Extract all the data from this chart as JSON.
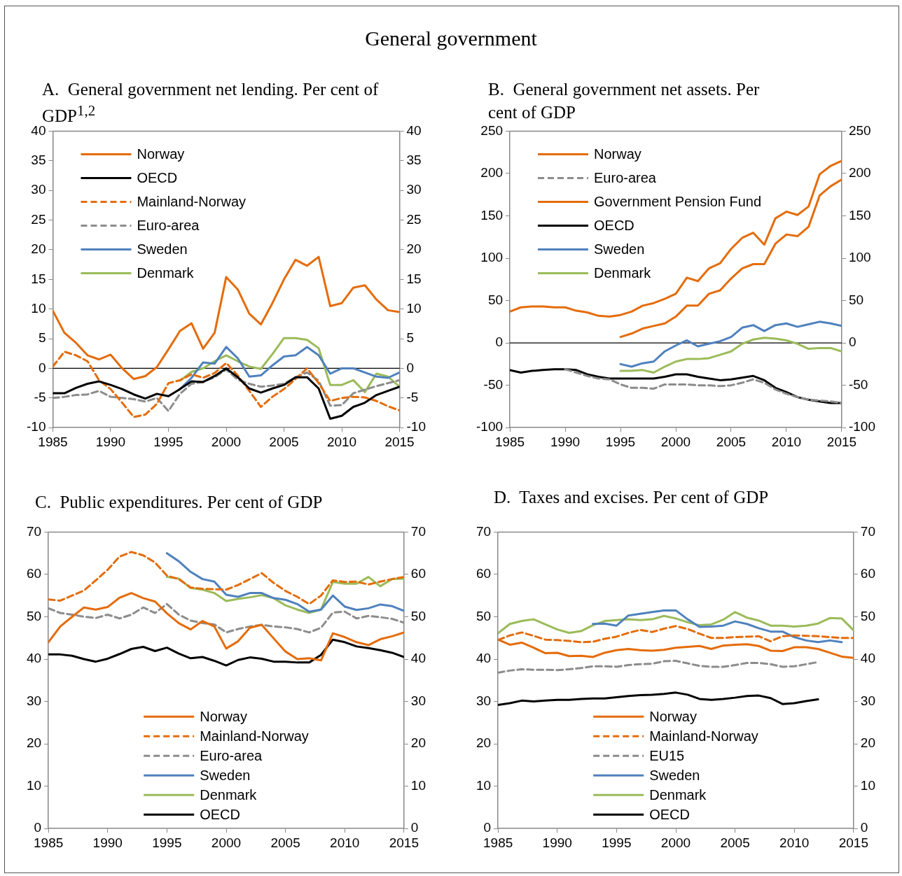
{
  "chart_data": [
    {
      "type": "other",
      "title": "General government"
    },
    {
      "type": "line",
      "title": "A.  General government net lending. Per cent of GDP$^{1,2}$",
      "x": [
        1985,
        1986,
        1987,
        1988,
        1989,
        1990,
        1991,
        1992,
        1993,
        1994,
        1995,
        1996,
        1997,
        1998,
        1999,
        2000,
        2001,
        2002,
        2003,
        2004,
        2005,
        2006,
        2007,
        2008,
        2009,
        2010,
        2011,
        2012,
        2013,
        2014,
        2015
      ],
      "xlim": [
        1985,
        2015
      ],
      "xticks": [
        1985,
        1990,
        1995,
        2000,
        2005,
        2010,
        2015
      ],
      "ylim": [
        -10,
        40
      ],
      "yticks": [
        -10,
        -5,
        0,
        5,
        10,
        15,
        20,
        25,
        30,
        35,
        40
      ],
      "y2lim": [
        -10,
        40
      ],
      "y2ticks": [
        -10,
        -5,
        0,
        5,
        10,
        15,
        20,
        25,
        30,
        35,
        40
      ],
      "legend": "top left",
      "ref_lines": [
        {
          "axis": "y",
          "value": 0,
          "color": "#000000"
        }
      ],
      "series": [
        {
          "name": "Norway",
          "color": "#e46c0a",
          "line_style": "solid",
          "values": [
            9.7,
            6,
            4.3,
            2.2,
            1.5,
            2.3,
            0,
            -1.8,
            -1.3,
            0.2,
            3.2,
            6.3,
            7.6,
            3.3,
            6,
            15.4,
            13.3,
            9.2,
            7.4,
            11,
            15,
            18.3,
            17.3,
            18.8,
            10.5,
            11,
            13.6,
            14,
            11.6,
            9.8,
            9.5
          ]
        },
        {
          "name": "OECD",
          "color": "#000000",
          "line_style": "solid",
          "values": [
            -4.2,
            -4.2,
            -3.3,
            -2.6,
            -2.2,
            -2.8,
            -3.5,
            -4.4,
            -5.1,
            -4.3,
            -4.7,
            -3.5,
            -2.2,
            -2.3,
            -1.3,
            0,
            -1.5,
            -3.4,
            -4.1,
            -3.4,
            -2.8,
            -1.5,
            -1.5,
            -3.4,
            -8.5,
            -8,
            -6.5,
            -5.8,
            -4.5,
            -3.8,
            -3.1
          ]
        },
        {
          "name": "Mainland-Norway",
          "color": "#e46c0a",
          "line_style": "dashed",
          "values": [
            0.3,
            2.8,
            2.2,
            1.2,
            -2,
            -3.5,
            -5.8,
            -8.2,
            -7.8,
            -6,
            -2.5,
            -2,
            -1,
            -1.6,
            -0.8,
            0.9,
            -1.2,
            -3.8,
            -6.5,
            -4.8,
            -3.5,
            -1.8,
            0,
            -2.5,
            -5.5,
            -5,
            -4.8,
            -4.9,
            -5.5,
            -6.4,
            -7.1
          ]
        },
        {
          "name": "Euro-area",
          "color": "#8c8c8c",
          "line_style": "dashed",
          "values": [
            -5,
            -4.8,
            -4.5,
            -4.4,
            -3.8,
            -4.8,
            -5,
            -5.2,
            -5.6,
            -5,
            -7.2,
            -4.3,
            -2.6,
            -2.3,
            -1.5,
            -0.2,
            -1.9,
            -2.6,
            -3.1,
            -2.9,
            -2.6,
            -1.5,
            -0.7,
            -2.1,
            -6.3,
            -6.2,
            -4.2,
            -3.6,
            -3,
            -2.5,
            -2
          ]
        },
        {
          "name": "Sweden",
          "color": "#4f81bd",
          "line_style": "solid",
          "values": [
            null,
            null,
            null,
            null,
            null,
            null,
            null,
            null,
            null,
            null,
            null,
            -3.5,
            -1.6,
            1,
            0.8,
            3.6,
            1.7,
            -1.4,
            -1.2,
            0.5,
            2,
            2.2,
            3.6,
            2.2,
            -0.9,
            0,
            0,
            -0.7,
            -1.4,
            -1.6,
            -0.7
          ]
        },
        {
          "name": "Denmark",
          "color": "#9bbb59",
          "line_style": "solid",
          "values": [
            null,
            null,
            null,
            null,
            null,
            null,
            null,
            null,
            null,
            null,
            null,
            -2.1,
            -0.6,
            0,
            1.2,
            2.2,
            1.2,
            0.3,
            -0.1,
            2.4,
            5.1,
            5.1,
            4.8,
            3.4,
            -2.8,
            -2.8,
            -2,
            -4,
            -0.9,
            -1.4,
            -3.1
          ]
        }
      ]
    },
    {
      "type": "line",
      "title": "B.  General government net assets. Per cent of GDP",
      "x": [
        1985,
        1986,
        1987,
        1988,
        1989,
        1990,
        1991,
        1992,
        1993,
        1994,
        1995,
        1996,
        1997,
        1998,
        1999,
        2000,
        2001,
        2002,
        2003,
        2004,
        2005,
        2006,
        2007,
        2008,
        2009,
        2010,
        2011,
        2012,
        2013,
        2014,
        2015
      ],
      "xlim": [
        1985,
        2015
      ],
      "xticks": [
        1985,
        1990,
        1995,
        2000,
        2005,
        2010,
        2015
      ],
      "ylim": [
        -100,
        250
      ],
      "yticks": [
        -100,
        -50,
        0,
        50,
        100,
        150,
        200,
        250
      ],
      "y2lim": [
        -100,
        250
      ],
      "y2ticks": [
        -100,
        -50,
        0,
        50,
        100,
        150,
        200,
        250
      ],
      "legend": "top left",
      "ref_lines": [
        {
          "axis": "y",
          "value": 0,
          "color": "#000000"
        }
      ],
      "series": [
        {
          "name": "Norway",
          "color": "#e46c0a",
          "line_style": "solid",
          "values": [
            37,
            42,
            43,
            43,
            42,
            42,
            38,
            36,
            32,
            31,
            33,
            37,
            44,
            47,
            52,
            58,
            77,
            73,
            88,
            94,
            111,
            124,
            130,
            116,
            147,
            155,
            151,
            161,
            199,
            209,
            215
          ]
        },
        {
          "name": "Euro-area",
          "color": "#8c8c8c",
          "line_style": "dashed",
          "values": [
            null,
            null,
            null,
            null,
            null,
            -31,
            -35,
            -39,
            -42,
            -43,
            -49,
            -53,
            -53,
            -54,
            -49,
            -49,
            -49,
            -50,
            -50,
            -51,
            -50,
            -47,
            -43,
            -47,
            -55,
            -60,
            -64,
            -67,
            -68,
            -69,
            -71
          ]
        },
        {
          "name": "Government Pension Fund",
          "color": "#e46c0a",
          "line_style": "solid",
          "values": [
            null,
            null,
            null,
            null,
            null,
            null,
            null,
            null,
            null,
            null,
            7,
            11,
            17,
            20,
            23,
            31,
            44,
            44,
            58,
            62,
            76,
            88,
            93,
            93,
            117,
            128,
            126,
            137,
            174,
            185,
            193
          ]
        },
        {
          "name": "OECD",
          "color": "#000000",
          "line_style": "solid",
          "values": [
            -32,
            -35,
            -33,
            -32,
            -31,
            -31,
            -32,
            -37,
            -40,
            -42,
            -42,
            -42,
            -42,
            -42,
            -40,
            -37,
            -37,
            -40,
            -42,
            -44,
            -43,
            -41,
            -39,
            -44,
            -53,
            -58,
            -64,
            -67,
            -69,
            -71,
            -71
          ]
        },
        {
          "name": "Sweden",
          "color": "#4f81bd",
          "line_style": "solid",
          "values": [
            null,
            null,
            null,
            null,
            null,
            null,
            null,
            null,
            null,
            null,
            -25,
            -28,
            -24,
            -22,
            -10,
            -3,
            3,
            -4,
            -1,
            2,
            7,
            18,
            21,
            14,
            21,
            23,
            19,
            22,
            25,
            23,
            20
          ]
        },
        {
          "name": "Denmark",
          "color": "#9bbb59",
          "line_style": "solid",
          "values": [
            null,
            null,
            null,
            null,
            null,
            null,
            null,
            null,
            null,
            null,
            -33,
            -33,
            -32,
            -35,
            -28,
            -22,
            -19,
            -19,
            -18,
            -14,
            -10,
            -1,
            4,
            6,
            5,
            3,
            -1,
            -7,
            -6,
            -6,
            -10
          ]
        }
      ]
    },
    {
      "type": "line",
      "title": "C.  Public expenditures. Per cent of GDP",
      "x": [
        1985,
        1986,
        1987,
        1988,
        1989,
        1990,
        1991,
        1992,
        1993,
        1994,
        1995,
        1996,
        1997,
        1998,
        1999,
        2000,
        2001,
        2002,
        2003,
        2004,
        2005,
        2006,
        2007,
        2008,
        2009,
        2010,
        2011,
        2012,
        2013,
        2014,
        2015
      ],
      "xlim": [
        1985,
        2015
      ],
      "xticks": [
        1985,
        1990,
        1995,
        2000,
        2005,
        2010,
        2015
      ],
      "ylim": [
        0,
        70
      ],
      "yticks": [
        0,
        10,
        20,
        30,
        40,
        50,
        60,
        70
      ],
      "y2lim": [
        0,
        70
      ],
      "y2ticks": [
        0,
        10,
        20,
        30,
        40,
        50,
        60,
        70
      ],
      "legend": "bottom",
      "series": [
        {
          "name": "Norway",
          "color": "#e46c0a",
          "line_style": "solid",
          "values": [
            44,
            47.7,
            50,
            52.2,
            51.7,
            52.3,
            54.5,
            55.6,
            54.4,
            53.6,
            50.8,
            48.5,
            47,
            49,
            47.7,
            42.5,
            44.2,
            47.4,
            48.1,
            44.9,
            41.8,
            40,
            40.2,
            39.7,
            46.1,
            45.2,
            44,
            43.3,
            44.7,
            45.4,
            46.3
          ]
        },
        {
          "name": "Mainland-Norway",
          "color": "#e46c0a",
          "line_style": "dashed",
          "values": [
            54.1,
            53.8,
            55,
            56.2,
            58.6,
            61.1,
            64.2,
            65.3,
            64.5,
            62.8,
            59.7,
            58.9,
            56.9,
            56.6,
            56.5,
            56.4,
            57.5,
            58.9,
            60.3,
            58,
            56.1,
            54.7,
            53,
            55,
            58.6,
            58.2,
            58.3,
            57.6,
            58.3,
            58.9,
            59.4
          ]
        },
        {
          "name": "Euro-area",
          "color": "#8c8c8c",
          "line_style": "dashed",
          "values": [
            52,
            50.9,
            50.5,
            50,
            49.7,
            50.5,
            49.6,
            50.5,
            52.2,
            50.9,
            53,
            50.5,
            49.1,
            48.5,
            48.2,
            46.3,
            47.1,
            47.7,
            48.1,
            47.7,
            47.5,
            47.1,
            46.3,
            47.4,
            51,
            51.2,
            49.6,
            50.2,
            49.9,
            49.5,
            48.6
          ]
        },
        {
          "name": "Sweden",
          "color": "#4f81bd",
          "line_style": "solid",
          "values": [
            null,
            null,
            null,
            null,
            null,
            null,
            null,
            null,
            null,
            null,
            65,
            63.1,
            60.6,
            58.9,
            58.3,
            55.2,
            54.7,
            55.6,
            55.6,
            54.4,
            54,
            53,
            51.2,
            51.7,
            55,
            52.4,
            51.6,
            52,
            52.9,
            52.5,
            51.4
          ]
        },
        {
          "name": "Denmark",
          "color": "#9bbb59",
          "line_style": "solid",
          "values": [
            null,
            null,
            null,
            null,
            null,
            null,
            null,
            null,
            null,
            null,
            59.4,
            59,
            56.8,
            56.4,
            55.6,
            53.7,
            54.2,
            54.6,
            55.1,
            54.4,
            52.7,
            51.7,
            50.9,
            51.7,
            58.2,
            57.8,
            57.8,
            59.4,
            57.2,
            58.9,
            59
          ]
        },
        {
          "name": "OECD",
          "color": "#000000",
          "line_style": "solid",
          "values": [
            41.1,
            41.1,
            40.8,
            40,
            39.4,
            40.1,
            41.2,
            42.4,
            42.9,
            41.9,
            42.7,
            41.3,
            40.2,
            40.5,
            39.6,
            38.5,
            39.8,
            40.4,
            40.1,
            39.4,
            39.4,
            39.2,
            39.2,
            41,
            44.6,
            44,
            43,
            42.6,
            42.1,
            41.5,
            40.5
          ]
        }
      ]
    },
    {
      "type": "line",
      "title": "D.  Taxes and excises. Per cent of GDP",
      "x": [
        1985,
        1986,
        1987,
        1988,
        1989,
        1990,
        1991,
        1992,
        1993,
        1994,
        1995,
        1996,
        1997,
        1998,
        1999,
        2000,
        2001,
        2002,
        2003,
        2004,
        2005,
        2006,
        2007,
        2008,
        2009,
        2010,
        2011,
        2012,
        2013,
        2014,
        2015
      ],
      "xlim": [
        1985,
        2015
      ],
      "xticks": [
        1985,
        1990,
        1995,
        2000,
        2005,
        2010,
        2015
      ],
      "ylim": [
        0,
        70
      ],
      "yticks": [
        0,
        10,
        20,
        30,
        40,
        50,
        60,
        70
      ],
      "y2lim": [
        0,
        70
      ],
      "y2ticks": [
        0,
        10,
        20,
        30,
        40,
        50,
        60,
        70
      ],
      "legend": "bottom",
      "series": [
        {
          "name": "Norway",
          "color": "#e46c0a",
          "line_style": "solid",
          "values": [
            44.6,
            43.4,
            43.9,
            42.7,
            41.4,
            41.5,
            40.7,
            40.8,
            40.5,
            41.5,
            42.1,
            42.4,
            42.1,
            42,
            42.2,
            42.7,
            42.9,
            43.1,
            42.4,
            43.2,
            43.4,
            43.5,
            43.1,
            42,
            41.9,
            42.8,
            42.8,
            42.4,
            41.5,
            40.6,
            40.3
          ]
        },
        {
          "name": "Mainland-Norway",
          "color": "#e46c0a",
          "line_style": "dashed",
          "values": [
            44.5,
            45.6,
            46.3,
            45.5,
            44.6,
            44.5,
            44.3,
            44,
            44.1,
            44.8,
            45.3,
            46.2,
            46.9,
            46.4,
            47.2,
            47.8,
            47.1,
            46,
            45,
            45,
            45.2,
            45.3,
            45.4,
            44.2,
            45.4,
            45.6,
            45.5,
            45.4,
            45.2,
            45,
            45
          ]
        },
        {
          "name": "EU15",
          "color": "#8c8c8c",
          "line_style": "dashed",
          "values": [
            36.8,
            37.3,
            37.6,
            37.5,
            37.5,
            37.4,
            37.6,
            37.9,
            38.3,
            38.3,
            38.2,
            38.6,
            38.8,
            38.9,
            39.5,
            39.6,
            39,
            38.4,
            38.2,
            38.2,
            38.6,
            39.1,
            39.1,
            38.8,
            38.2,
            38.3,
            38.8,
            39.3,
            null,
            null,
            null
          ]
        },
        {
          "name": "Sweden",
          "color": "#4f81bd",
          "line_style": "solid",
          "values": [
            null,
            null,
            null,
            null,
            null,
            null,
            null,
            null,
            48.3,
            48.4,
            47.9,
            50.3,
            50.7,
            51.1,
            51.5,
            51.5,
            49.4,
            47.6,
            47.7,
            47.9,
            48.9,
            48.3,
            47.3,
            46.5,
            46.5,
            45.2,
            44.4,
            44,
            44.4,
            44,
            null
          ]
        },
        {
          "name": "Denmark",
          "color": "#9bbb59",
          "line_style": "solid",
          "values": [
            46.1,
            48.3,
            49,
            49.4,
            48.2,
            47,
            46.2,
            46.6,
            48,
            49,
            49.2,
            49.4,
            49.2,
            49.4,
            50.2,
            49.6,
            48.7,
            48,
            48.2,
            49.3,
            51.1,
            49.8,
            49.1,
            47.9,
            47.9,
            47.7,
            47.9,
            48.4,
            49.7,
            49.6,
            46.8
          ]
        },
        {
          "name": "OECD",
          "color": "#000000",
          "line_style": "solid",
          "values": [
            29.2,
            29.6,
            30.2,
            30,
            30.2,
            30.4,
            30.4,
            30.6,
            30.7,
            30.7,
            31,
            31.3,
            31.5,
            31.6,
            31.8,
            32.1,
            31.6,
            30.6,
            30.4,
            30.6,
            30.9,
            31.3,
            31.4,
            30.8,
            29.4,
            29.6,
            30.1,
            30.5,
            null,
            null,
            null
          ]
        }
      ]
    }
  ]
}
